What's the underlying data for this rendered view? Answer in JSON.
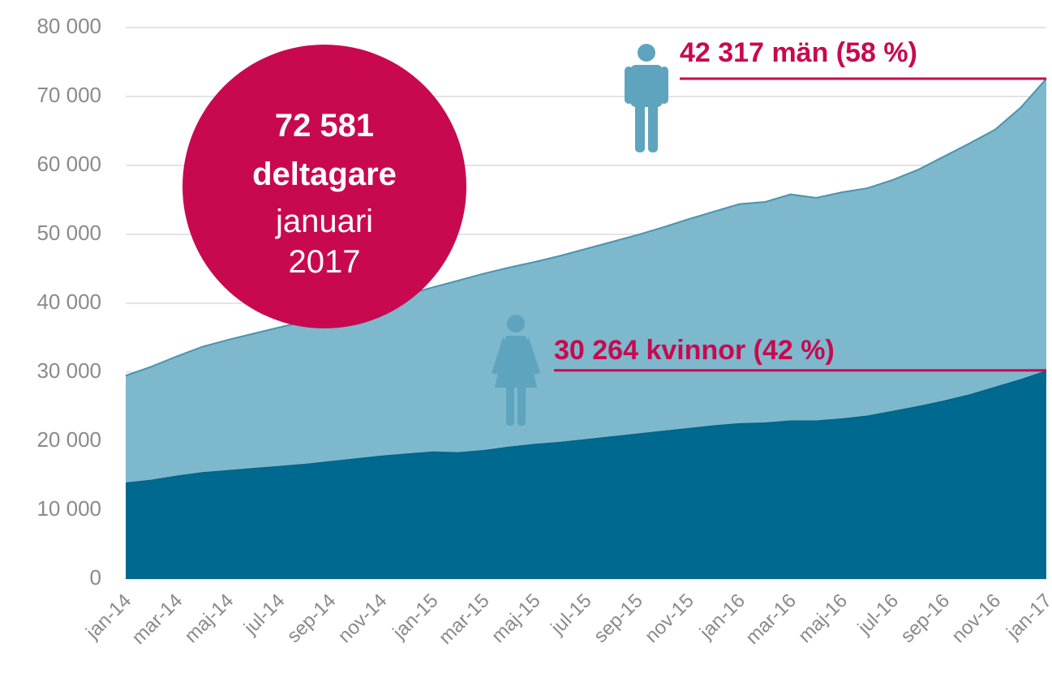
{
  "chart_data": {
    "type": "stacked_area",
    "categories": [
      "jan-14",
      null,
      "mar-14",
      null,
      "maj-14",
      null,
      "jul-14",
      null,
      "sep-14",
      null,
      "nov-14",
      null,
      "jan-15",
      null,
      "mar-15",
      null,
      "maj-15",
      null,
      "jul-15",
      null,
      "sep-15",
      null,
      "nov-15",
      null,
      "jan-16",
      null,
      "mar-16",
      null,
      "maj-16",
      null,
      "jul-16",
      null,
      "sep-16",
      null,
      "nov-16",
      null,
      "jan-17"
    ],
    "series": [
      {
        "color": "#00698f",
        "values": [
          14000,
          14400,
          15000,
          15500,
          15800,
          16100,
          16400,
          16700,
          17100,
          17500,
          17900,
          18200,
          18500,
          18400,
          18700,
          19200,
          19600,
          19900,
          20300,
          20700,
          21100,
          21500,
          21900,
          22300,
          22600,
          22700,
          23000,
          23000,
          23300,
          23700,
          24400,
          25100,
          25900,
          26800,
          27900,
          29000,
          30264
        ]
      },
      {
        "color": "#7db8cc",
        "values": [
          15500,
          16400,
          17300,
          18200,
          18900,
          19500,
          20100,
          20700,
          21300,
          21800,
          22400,
          23100,
          23800,
          24900,
          25600,
          26000,
          26400,
          27000,
          27600,
          28200,
          28800,
          29500,
          30300,
          31000,
          31800,
          32000,
          32800,
          32300,
          32800,
          33000,
          33500,
          34300,
          35400,
          36400,
          37300,
          39400,
          42317
        ]
      }
    ],
    "ylim": [
      0,
      80000
    ],
    "yticks": [
      0,
      {
        "value": 10000,
        "label": "10 000"
      },
      {
        "value": 20000,
        "label": "20 000"
      },
      {
        "value": 30000,
        "label": "30 000"
      },
      {
        "value": 40000,
        "label": "40 000"
      },
      {
        "value": 50000,
        "label": "50 000"
      },
      {
        "value": 60000,
        "label": "60 000"
      },
      {
        "value": 70000,
        "label": "70 000"
      },
      {
        "value": 80000,
        "label": "80 000"
      }
    ],
    "grid": true,
    "annotations": {
      "total": [
        "72 581",
        "deltagare",
        "januari",
        "2017"
      ],
      "men": "42 317 män (58 %)",
      "women": "30 264 kvinnor (42 %)"
    },
    "accent_color": "#c8094f",
    "icon_color": "#5fa4bf"
  }
}
